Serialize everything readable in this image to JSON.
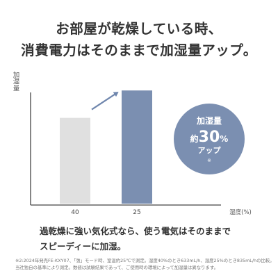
{
  "heading": {
    "line1": "お部屋が乾燥している時、",
    "line2": "消費電力はそのままで加湿量アップ。"
  },
  "chart_data": {
    "type": "bar",
    "title": "",
    "ylabel": "加湿量",
    "xlabel": "湿度(%)",
    "categories": [
      "40",
      "25"
    ],
    "values": [
      633,
      835
    ],
    "ylim": [
      0,
      1000
    ],
    "colors": [
      "#e0e0e0",
      "#7b8fb1"
    ],
    "axis_color": "#444444",
    "arrow_color": "#6f86ad",
    "badge": {
      "line1": "加湿量",
      "prefix": "約",
      "number": "30",
      "unit": "%",
      "line3": "アップ",
      "mark": "※",
      "color": "#7b8fb1"
    },
    "grid": false,
    "legend": "none"
  },
  "caption": {
    "line1": "過乾燥に強い気化式なら、使う電気はそのままで",
    "line2": "スピーディーに加湿。"
  },
  "footnote": {
    "line1": "※2:2024年発売FE-KXY07、「強」モード時、室温約25℃で測定。湿度40%のとき633mL/h、湿度25%のとき835mL/hの比較。",
    "line2": "当社独自の基準により測定。数値は試験結果であって、ご使用時の環境によって加湿量は異なります。"
  }
}
